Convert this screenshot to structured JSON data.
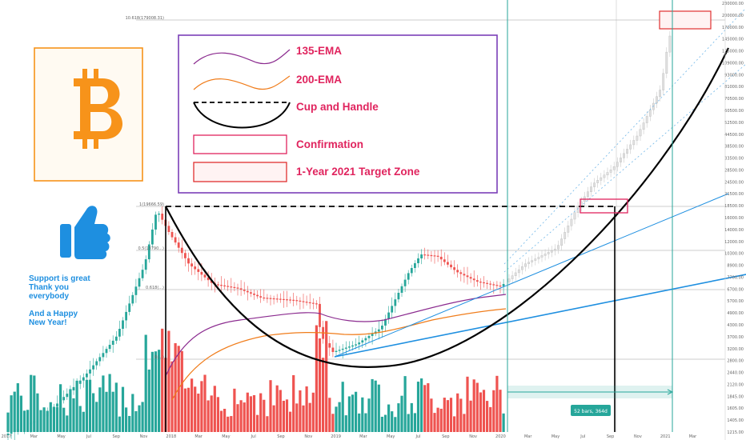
{
  "chart_data": {
    "type": "candlestick",
    "y_scale": "log",
    "x_ticks": [
      "2017",
      "Mar",
      "May",
      "Jul",
      "Sep",
      "Nov",
      "2018",
      "Mar",
      "May",
      "Jul",
      "Sep",
      "Nov",
      "2019",
      "Mar",
      "May",
      "Jul",
      "Sep",
      "Nov",
      "2020",
      "Mar",
      "May",
      "Jul",
      "Sep",
      "Nov",
      "2021",
      "Mar"
    ],
    "y_ticks": [
      "230000.00",
      "200000.00",
      "170000.00",
      "145000.00",
      "125000.00",
      "109000.00",
      "93000.00",
      "81000.00",
      "70500.00",
      "60500.00",
      "52500.00",
      "44500.00",
      "38500.00",
      "33500.00",
      "28500.00",
      "24500.00",
      "21500.00",
      "18500.00",
      "16000.00",
      "14000.00",
      "12000.00",
      "10300.00",
      "8900.00",
      "7700.00",
      "6700.00",
      "5700.00",
      "4900.00",
      "4300.00",
      "3700.00",
      "3200.00",
      "2800.00",
      "2440.00",
      "2120.00",
      "1845.00",
      "1605.00",
      "1405.00",
      "1215.00"
    ],
    "price_lines": [
      {
        "label": "10.618(179008.31)",
        "value": 179008
      },
      {
        "label": "1(19666.59)",
        "value": 19666
      },
      {
        "label": "0.5(13790...)",
        "value": 13790
      },
      {
        "label": "0.618(...)",
        "value": 8200
      },
      {
        "label": "0(...)",
        "value": 3122
      }
    ],
    "legend": [
      {
        "label": "135-EMA",
        "kind": "line",
        "color": "#8b2b8f"
      },
      {
        "label": "200-EMA",
        "kind": "line",
        "color": "#f07c1a"
      },
      {
        "label": "Cup and Handle",
        "kind": "cup",
        "color": "#000000"
      },
      {
        "label": "Confirmation",
        "kind": "box",
        "color": "#e0245e"
      },
      {
        "label": "1-Year 2021 Target Zone",
        "kind": "box-filled",
        "color": "#e03030"
      }
    ],
    "measure_label": "52 bars, 364d"
  },
  "sidebar": {
    "support_lines": [
      "Support is great",
      "Thank you",
      "everybody"
    ],
    "newyear_lines": [
      "And a Happy",
      "New Year!"
    ]
  },
  "colors": {
    "bull": "#26a69a",
    "bear": "#ef5350",
    "ema135": "#8b2b8f",
    "ema200": "#f07c1a",
    "trend": "#1e8fe0",
    "teal": "#26a69a",
    "bitcoin": "#f7931a",
    "thumb": "#1e8fe0"
  },
  "icons": {
    "logo": "bitcoin-logo-icon",
    "thumb": "thumbs-up-icon"
  }
}
